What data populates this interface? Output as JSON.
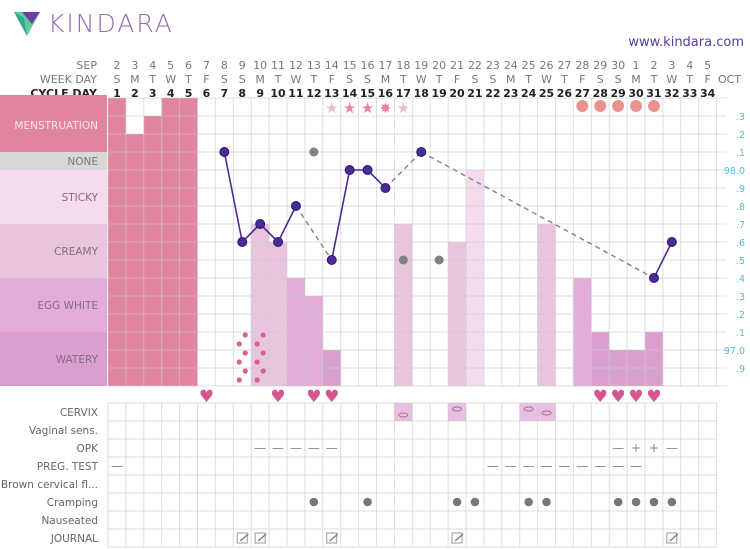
{
  "header": {
    "logo_text": "KINDARA",
    "url": "www.kindara.com"
  },
  "colors": {
    "menstruation": "#e0859d",
    "none": "#d8d8d8",
    "sticky": "#f4dcee",
    "creamy": "#e9c4df",
    "egg_white": "#e3acd9",
    "watery": "#d9a0cf",
    "temp": "#4b2b96",
    "excluded": "#808080",
    "heart": "#d5568e",
    "axis": "#5ab7e0",
    "ovulation_circle": "#e9928f",
    "star": "#f07fa5",
    "star_light": "#f2b5d8"
  },
  "chart_data": {
    "type": "fertility-chart",
    "row_labels": {
      "month": "SEP",
      "weekday": "WEEK DAY",
      "cycle_day": "CYCLE DAY",
      "end_month": "OCT"
    },
    "dates": [
      "2",
      "3",
      "4",
      "5",
      "6",
      "7",
      "8",
      "9",
      "10",
      "11",
      "12",
      "13",
      "14",
      "15",
      "16",
      "17",
      "18",
      "19",
      "20",
      "21",
      "22",
      "23",
      "24",
      "25",
      "26",
      "27",
      "28",
      "29",
      "30",
      "1",
      "2",
      "3",
      "4",
      "5"
    ],
    "weekdays": [
      "S",
      "M",
      "T",
      "W",
      "T",
      "F",
      "S",
      "S",
      "M",
      "T",
      "W",
      "T",
      "F",
      "S",
      "S",
      "M",
      "T",
      "W",
      "T",
      "F",
      "S",
      "S",
      "M",
      "T",
      "W",
      "T",
      "F",
      "S",
      "S",
      "M",
      "T",
      "W",
      "T",
      "F"
    ],
    "cycle_days": [
      1,
      2,
      3,
      4,
      5,
      6,
      7,
      8,
      9,
      10,
      11,
      12,
      13,
      14,
      15,
      16,
      17,
      18,
      19,
      20,
      21,
      22,
      23,
      24,
      25,
      26,
      27,
      28,
      29,
      30,
      31,
      32,
      33,
      34
    ],
    "categories": [
      "MENSTRUATION",
      "NONE",
      "STICKY",
      "CREAMY",
      "EGG WHITE",
      "WATERY"
    ],
    "temp_axis": {
      "labels": [
        ".3",
        ".2",
        ".1",
        "98.0",
        ".9",
        ".8",
        ".7",
        ".6",
        ".5",
        ".4",
        ".3",
        ".2",
        ".1",
        "97.0",
        ".9"
      ],
      "values": [
        98.3,
        98.2,
        98.1,
        98.0,
        97.9,
        97.8,
        97.7,
        97.6,
        97.5,
        97.4,
        97.3,
        97.2,
        97.1,
        97.0,
        96.9
      ]
    },
    "menstruation": [
      {
        "day": 1,
        "level": 3
      },
      {
        "day": 2,
        "level": 1
      },
      {
        "day": 3,
        "level": 2
      },
      {
        "day": 4,
        "level": 3
      },
      {
        "day": 5,
        "level": 3
      }
    ],
    "temperatures": [
      {
        "day": 7,
        "temp": 98.1
      },
      {
        "day": 8,
        "temp": 97.6
      },
      {
        "day": 9,
        "temp": 97.7
      },
      {
        "day": 10,
        "temp": 97.6
      },
      {
        "day": 11,
        "temp": 97.8
      },
      {
        "day": 13,
        "temp": 97.5
      },
      {
        "day": 14,
        "temp": 98.0
      },
      {
        "day": 15,
        "temp": 98.0
      },
      {
        "day": 16,
        "temp": 97.9
      },
      {
        "day": 18,
        "temp": 98.1
      },
      {
        "day": 31,
        "temp": 97.4
      },
      {
        "day": 32,
        "temp": 97.6
      }
    ],
    "solid_segments": [
      [
        7,
        8
      ],
      [
        8,
        9
      ],
      [
        9,
        10
      ],
      [
        10,
        11
      ],
      [
        13,
        14
      ],
      [
        14,
        15
      ],
      [
        15,
        16
      ],
      [
        31,
        32
      ]
    ],
    "dashed_segments": [
      [
        11,
        13
      ],
      [
        16,
        18
      ],
      [
        18,
        31
      ]
    ],
    "excluded_temps": [
      {
        "day": 12,
        "temp": 98.1
      },
      {
        "day": 17,
        "temp": 97.5
      },
      {
        "day": 19,
        "temp": 97.5
      }
    ],
    "cervical_fluid": [
      {
        "day": 9,
        "level": 9
      },
      {
        "day": 10,
        "level": 8
      },
      {
        "day": 11,
        "level": 6
      },
      {
        "day": 12,
        "level": 5
      },
      {
        "day": 13,
        "level": 2
      },
      {
        "day": 17,
        "level": 9
      },
      {
        "day": 20,
        "level": 8
      },
      {
        "day": 21,
        "level": 12
      },
      {
        "day": 25,
        "level": 9
      },
      {
        "day": 27,
        "level": 6
      },
      {
        "day": 28,
        "level": 3
      },
      {
        "day": 29,
        "level": 2
      },
      {
        "day": 30,
        "level": 2
      },
      {
        "day": 31,
        "level": 3
      }
    ],
    "spotting_days": [
      8,
      9
    ],
    "stars": [
      {
        "day": 13,
        "kind": "light"
      },
      {
        "day": 14,
        "kind": "full"
      },
      {
        "day": 15,
        "kind": "full"
      },
      {
        "day": 16,
        "kind": "burst"
      },
      {
        "day": 17,
        "kind": "light"
      }
    ],
    "ovulation_circles": [
      27,
      28,
      29,
      30,
      31
    ],
    "intercourse_days": [
      6,
      10,
      12,
      13,
      28,
      29,
      30,
      31
    ],
    "symptom_rows": [
      "CERVIX",
      "Vaginal sens.",
      "OPK",
      "PREG. TEST",
      "Brown cervical fl...",
      "Cramping",
      "Nauseated",
      "JOURNAL"
    ],
    "cervix": [
      {
        "day": 17,
        "pos": "low"
      },
      {
        "day": 20,
        "pos": "high"
      },
      {
        "day": 24,
        "pos": "high"
      },
      {
        "day": 25,
        "pos": "mid"
      }
    ],
    "opk": [
      {
        "day": 9,
        "v": "—"
      },
      {
        "day": 10,
        "v": "—"
      },
      {
        "day": 11,
        "v": "—"
      },
      {
        "day": 12,
        "v": "—"
      },
      {
        "day": 13,
        "v": "—"
      },
      {
        "day": 29,
        "v": "—"
      },
      {
        "day": 30,
        "v": "+"
      },
      {
        "day": 31,
        "v": "+"
      },
      {
        "day": 32,
        "v": "—"
      }
    ],
    "preg_test": [
      {
        "day": 1,
        "v": "—"
      },
      {
        "day": 22,
        "v": "—"
      },
      {
        "day": 23,
        "v": "—"
      },
      {
        "day": 24,
        "v": "—"
      },
      {
        "day": 25,
        "v": "—"
      },
      {
        "day": 26,
        "v": "—"
      },
      {
        "day": 27,
        "v": "—"
      },
      {
        "day": 28,
        "v": "—"
      },
      {
        "day": 29,
        "v": "—"
      },
      {
        "day": 30,
        "v": "—"
      }
    ],
    "cramping": [
      12,
      15,
      20,
      21,
      24,
      25,
      29,
      30,
      31,
      32
    ],
    "journal": [
      8,
      9,
      13,
      20,
      32
    ]
  }
}
